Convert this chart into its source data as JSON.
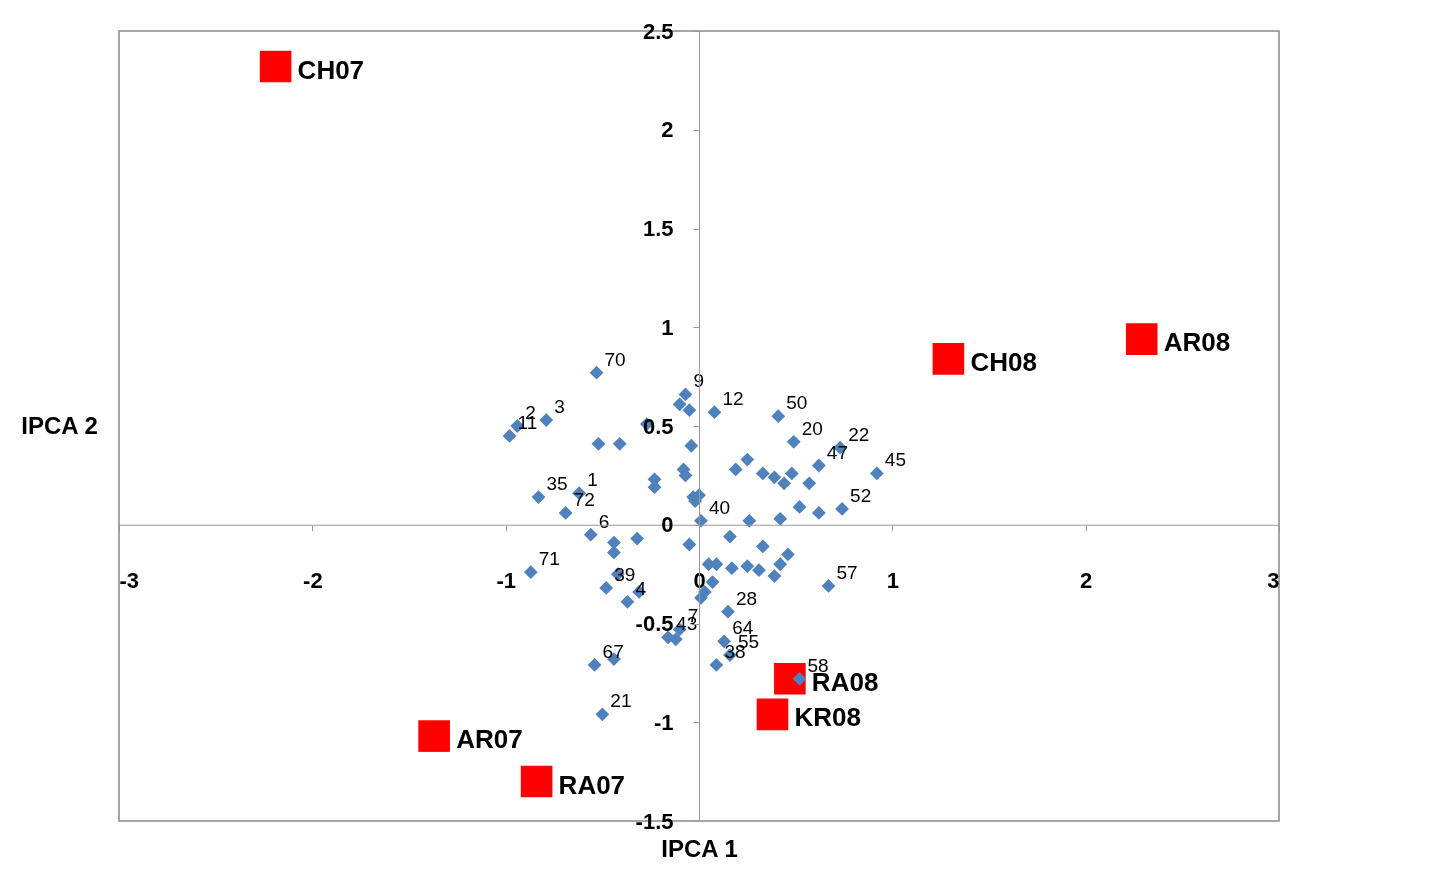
{
  "chart_data": {
    "type": "scatter",
    "xlabel": "IPCA 1",
    "ylabel": "IPCA 2",
    "xlim": [
      -3,
      3
    ],
    "ylim": [
      -1.5,
      2.5
    ],
    "xticks": [
      -3,
      -2,
      -1,
      0,
      1,
      2,
      3
    ],
    "yticks": [
      -1.5,
      -1,
      -0.5,
      0,
      0.5,
      1,
      1.5,
      2,
      2.5
    ],
    "grid": false,
    "series": [
      {
        "marker": "diamond",
        "color": "#4f81bd",
        "x": [
          -0.53,
          -0.07,
          -0.94,
          -0.98,
          -0.79,
          0.08,
          0.41,
          0.49,
          0.73,
          0.62,
          0.92,
          0.74,
          -0.83,
          -0.62,
          -0.69,
          -0.56,
          -0.87,
          -0.48,
          -0.37,
          -0.16,
          -0.1,
          -0.54,
          -0.5,
          0.01,
          0.67,
          0.15,
          0.13,
          0.16,
          0.09,
          0.52,
          -0.41,
          -0.52,
          -0.27,
          -0.23,
          -0.23,
          -0.08,
          -0.07,
          -0.04,
          -0.03,
          -0.02,
          -0.1,
          -0.05,
          -0.44,
          -0.44,
          -0.32,
          -0.42,
          -0.31,
          -0.44,
          -0.05,
          -0.12,
          0.16,
          0.33,
          0.05,
          0.09,
          0.17,
          0.25,
          0.31,
          0.39,
          0.42,
          0.46,
          0.07,
          0.03,
          0.01,
          0.19,
          0.25,
          0.33,
          0.39,
          0.44,
          0.48,
          0.57,
          0.52,
          0.62,
          0.26,
          0.42,
          0.0
        ],
        "values": [
          0.77,
          0.66,
          0.5,
          0.45,
          0.53,
          0.57,
          0.55,
          0.42,
          0.39,
          0.3,
          0.26,
          0.08,
          0.14,
          0.16,
          0.06,
          -0.05,
          -0.24,
          -0.32,
          -0.39,
          -0.57,
          -0.53,
          -0.71,
          -0.96,
          0.02,
          -0.31,
          -0.44,
          -0.59,
          -0.66,
          -0.71,
          -0.78,
          0.41,
          0.41,
          0.51,
          0.23,
          0.19,
          0.28,
          0.25,
          0.4,
          0.14,
          0.12,
          0.61,
          0.58,
          -0.09,
          -0.14,
          -0.07,
          -0.25,
          -0.34,
          -0.68,
          -0.1,
          -0.58,
          -0.06,
          -0.11,
          -0.2,
          -0.2,
          -0.22,
          -0.21,
          -0.23,
          -0.26,
          -0.2,
          -0.15,
          -0.29,
          -0.34,
          -0.37,
          0.28,
          0.33,
          0.26,
          0.24,
          0.21,
          0.26,
          0.21,
          0.09,
          0.06,
          0.02,
          0.03,
          0.15
        ]
      },
      {
        "marker": "square",
        "color": "#ff0000",
        "x": [
          -2.19,
          1.29,
          2.29,
          0.47,
          0.38,
          -1.37,
          -0.84
        ],
        "values": [
          2.32,
          0.84,
          0.94,
          -0.78,
          -0.96,
          -1.07,
          -1.3
        ]
      }
    ],
    "annotations": [
      {
        "text": "70",
        "x": -0.53,
        "y": 0.77
      },
      {
        "text": "9",
        "x": -0.07,
        "y": 0.66
      },
      {
        "text": "2",
        "x": -0.94,
        "y": 0.5
      },
      {
        "text": "11",
        "x": -0.98,
        "y": 0.45
      },
      {
        "text": "3",
        "x": -0.79,
        "y": 0.53
      },
      {
        "text": "12",
        "x": 0.08,
        "y": 0.57
      },
      {
        "text": "50",
        "x": 0.41,
        "y": 0.55
      },
      {
        "text": "20",
        "x": 0.49,
        "y": 0.42
      },
      {
        "text": "22",
        "x": 0.73,
        "y": 0.39
      },
      {
        "text": "47",
        "x": 0.62,
        "y": 0.3
      },
      {
        "text": "45",
        "x": 0.92,
        "y": 0.26
      },
      {
        "text": "52",
        "x": 0.74,
        "y": 0.08
      },
      {
        "text": "35",
        "x": -0.83,
        "y": 0.14
      },
      {
        "text": "1",
        "x": -0.62,
        "y": 0.16
      },
      {
        "text": "72",
        "x": -0.69,
        "y": 0.06
      },
      {
        "text": "6",
        "x": -0.56,
        "y": -0.05
      },
      {
        "text": "71",
        "x": -0.87,
        "y": -0.24
      },
      {
        "text": "39",
        "x": -0.48,
        "y": -0.32
      },
      {
        "text": "4",
        "x": -0.37,
        "y": -0.39
      },
      {
        "text": "43",
        "x": -0.16,
        "y": -0.57
      },
      {
        "text": "7",
        "x": -0.1,
        "y": -0.53
      },
      {
        "text": "67",
        "x": -0.54,
        "y": -0.71
      },
      {
        "text": "21",
        "x": -0.5,
        "y": -0.96
      },
      {
        "text": "40",
        "x": 0.01,
        "y": 0.02
      },
      {
        "text": "57",
        "x": 0.67,
        "y": -0.31
      },
      {
        "text": "28",
        "x": 0.15,
        "y": -0.44
      },
      {
        "text": "64",
        "x": 0.13,
        "y": -0.59
      },
      {
        "text": "55",
        "x": 0.16,
        "y": -0.66
      },
      {
        "text": "38",
        "x": 0.09,
        "y": -0.71
      },
      {
        "text": "58",
        "x": 0.52,
        "y": -0.78
      },
      {
        "text": "CH07",
        "x": -2.19,
        "y": 2.32
      },
      {
        "text": "CH08",
        "x": 1.29,
        "y": 0.84
      },
      {
        "text": "AR08",
        "x": 2.29,
        "y": 0.94
      },
      {
        "text": "RA08",
        "x": 0.47,
        "y": -0.78
      },
      {
        "text": "KR08",
        "x": 0.38,
        "y": -0.96
      },
      {
        "text": "AR07",
        "x": -1.37,
        "y": -1.07
      },
      {
        "text": "RA07",
        "x": -0.84,
        "y": -1.3
      }
    ]
  }
}
